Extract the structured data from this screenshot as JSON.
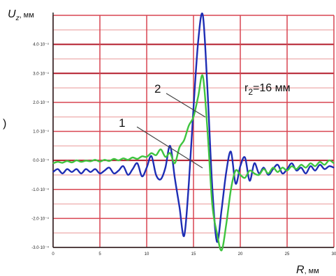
{
  "chart_data": {
    "type": "line",
    "title": "",
    "ylabel_symbol": "U",
    "ylabel_subscript": "z",
    "ylabel_unit": ", мм",
    "xlabel_symbol": "R",
    "xlabel_unit": ", мм",
    "annotation_prefix": "r",
    "annotation_subscript": "2",
    "annotation_suffix": "=16 мм",
    "curve_label_1": "1",
    "curve_label_2": "2",
    "stray_label": ")",
    "xlim": [
      0,
      30
    ],
    "ylim": [
      -3,
      5
    ],
    "grid": true,
    "x_ticks": [
      "0",
      "5",
      "10",
      "15",
      "20",
      "25",
      "30"
    ],
    "y_ticks": [
      "-3.0·10⁻⁴",
      "-2.0·10⁻⁴",
      "-1.0·10⁻⁴",
      "0.0·10⁻⁴",
      "1.0·10⁻⁴",
      "2.0·10⁻⁴",
      "3.0·10⁻⁴",
      "4.0·10⁻⁴"
    ],
    "series": [
      {
        "name": "1",
        "color": "#1e2db4",
        "x": [
          0,
          0.5,
          1,
          1.5,
          2,
          2.5,
          3,
          3.5,
          4,
          4.5,
          5,
          5.5,
          6,
          6.5,
          7,
          7.5,
          8,
          8.5,
          9,
          9.5,
          10,
          10.5,
          11,
          11.5,
          12,
          12.5,
          13,
          13.5,
          14,
          14.5,
          15,
          15.5,
          16,
          16.5,
          17,
          17.5,
          18,
          18.5,
          19,
          19.5,
          20,
          20.5,
          21,
          21.5,
          22,
          22.5,
          23,
          23.5,
          24,
          24.5,
          25,
          25.5,
          26,
          26.5,
          27,
          27.5,
          28,
          28.5,
          29,
          29.5,
          30
        ],
        "values": [
          -0.4,
          -0.3,
          -0.45,
          -0.3,
          -0.4,
          -0.3,
          -0.45,
          -0.3,
          -0.4,
          -0.3,
          -0.45,
          -0.35,
          -0.25,
          -0.45,
          -0.35,
          -0.2,
          -0.5,
          -0.3,
          -0.1,
          -0.55,
          -0.25,
          0.15,
          -0.5,
          -0.65,
          -0.25,
          0.5,
          -0.6,
          -1.6,
          -2.6,
          -0.8,
          1.8,
          4.1,
          5.0,
          2.4,
          -0.9,
          -2.8,
          -1.7,
          -0.4,
          0.3,
          -0.8,
          -0.2,
          0.1,
          -0.7,
          -0.1,
          -0.45,
          -0.25,
          -0.5,
          -0.3,
          -0.15,
          -0.45,
          -0.3,
          -0.1,
          -0.35,
          -0.25,
          -0.45,
          -0.2,
          -0.35,
          -0.15,
          -0.3,
          -0.2,
          -0.25
        ]
      },
      {
        "name": "2",
        "color": "#3fc43f",
        "x": [
          0,
          0.5,
          1,
          1.5,
          2,
          2.5,
          3,
          3.5,
          4,
          4.5,
          5,
          5.5,
          6,
          6.5,
          7,
          7.5,
          8,
          8.5,
          9,
          9.5,
          10,
          10.5,
          11,
          11.5,
          12,
          12.5,
          13,
          13.5,
          14,
          14.5,
          15,
          15.5,
          16,
          16.5,
          17,
          17.5,
          18,
          18.5,
          19,
          19.5,
          20,
          20.5,
          21,
          21.5,
          22,
          22.5,
          23,
          23.5,
          24,
          24.5,
          25,
          25.5,
          26,
          26.5,
          27,
          27.5,
          28,
          28.5,
          29,
          29.5,
          30
        ],
        "values": [
          -0.1,
          -0.05,
          -0.08,
          -0.02,
          -0.07,
          0.0,
          -0.05,
          -0.01,
          -0.03,
          0.02,
          -0.04,
          0.02,
          -0.02,
          0.05,
          0.0,
          0.07,
          0.02,
          0.1,
          0.05,
          0.14,
          0.12,
          0.25,
          0.18,
          0.38,
          0.12,
          0.25,
          -0.1,
          0.45,
          0.7,
          1.2,
          1.5,
          2.2,
          2.9,
          1.0,
          -1.5,
          -2.5,
          -3.1,
          -2.2,
          -1.0,
          -0.35,
          -0.5,
          -0.6,
          -0.35,
          -0.45,
          -0.5,
          -0.3,
          -0.45,
          -0.25,
          -0.4,
          -0.25,
          -0.35,
          -0.2,
          -0.3,
          -0.15,
          -0.25,
          -0.1,
          -0.2,
          -0.05,
          -0.15,
          0.0,
          -0.1
        ]
      }
    ]
  }
}
